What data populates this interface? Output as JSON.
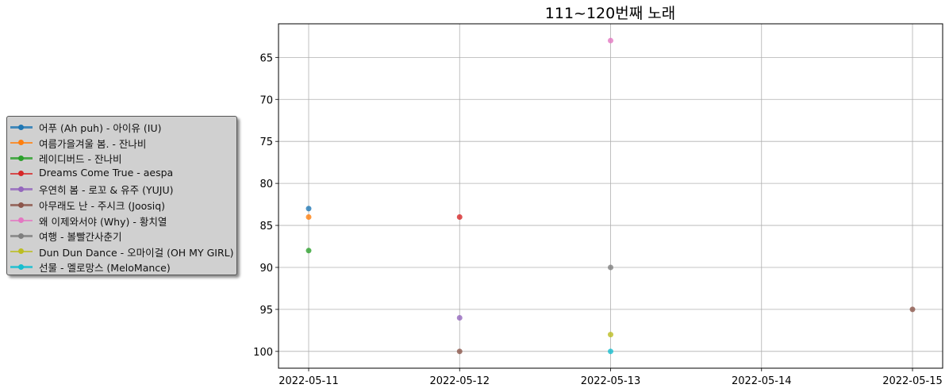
{
  "chart_data": {
    "type": "scatter",
    "title": "111~120번째 노래",
    "xlabel": "",
    "ylabel": "",
    "x_categories": [
      "2022-05-11",
      "2022-05-12",
      "2022-05-13",
      "2022-05-14",
      "2022-05-15"
    ],
    "yticks": [
      65,
      70,
      75,
      80,
      85,
      90,
      95,
      100
    ],
    "ylim": [
      102,
      61
    ],
    "y_inverted": true,
    "grid": true,
    "legend_placement": "outside-left",
    "series": [
      {
        "name": "어푸 (Ah puh) - 아이유 (IU)",
        "color": "#1f77b4",
        "points": [
          {
            "x": "2022-05-11",
            "y": 83
          }
        ]
      },
      {
        "name": "여름가을겨울 봄. - 잔나비",
        "color": "#ff7f0e",
        "points": [
          {
            "x": "2022-05-11",
            "y": 84
          }
        ]
      },
      {
        "name": "레이디버드 - 잔나비",
        "color": "#2ca02c",
        "points": [
          {
            "x": "2022-05-11",
            "y": 88
          }
        ]
      },
      {
        "name": "Dreams Come True - aespa",
        "color": "#d62728",
        "points": [
          {
            "x": "2022-05-12",
            "y": 84
          }
        ]
      },
      {
        "name": "우연히 봄 - 로꼬 & 유주 (YUJU)",
        "color": "#9467bd",
        "points": [
          {
            "x": "2022-05-12",
            "y": 96
          }
        ]
      },
      {
        "name": "아무래도 난 - 주시크 (Joosiq)",
        "color": "#8c564b",
        "points": [
          {
            "x": "2022-05-12",
            "y": 100
          },
          {
            "x": "2022-05-15",
            "y": 95
          }
        ]
      },
      {
        "name": "왜 이제와서야 (Why) - 황치열",
        "color": "#e377c2",
        "points": [
          {
            "x": "2022-05-13",
            "y": 63
          }
        ]
      },
      {
        "name": "여행 - 볼빨간사춘기",
        "color": "#7f7f7f",
        "points": [
          {
            "x": "2022-05-13",
            "y": 90
          }
        ]
      },
      {
        "name": "Dun Dun Dance - 오마이걸 (OH MY GIRL)",
        "color": "#bcbd22",
        "points": [
          {
            "x": "2022-05-13",
            "y": 98
          }
        ]
      },
      {
        "name": "선물 - 멜로망스 (MeloMance)",
        "color": "#17becf",
        "points": [
          {
            "x": "2022-05-13",
            "y": 100
          }
        ]
      }
    ]
  }
}
